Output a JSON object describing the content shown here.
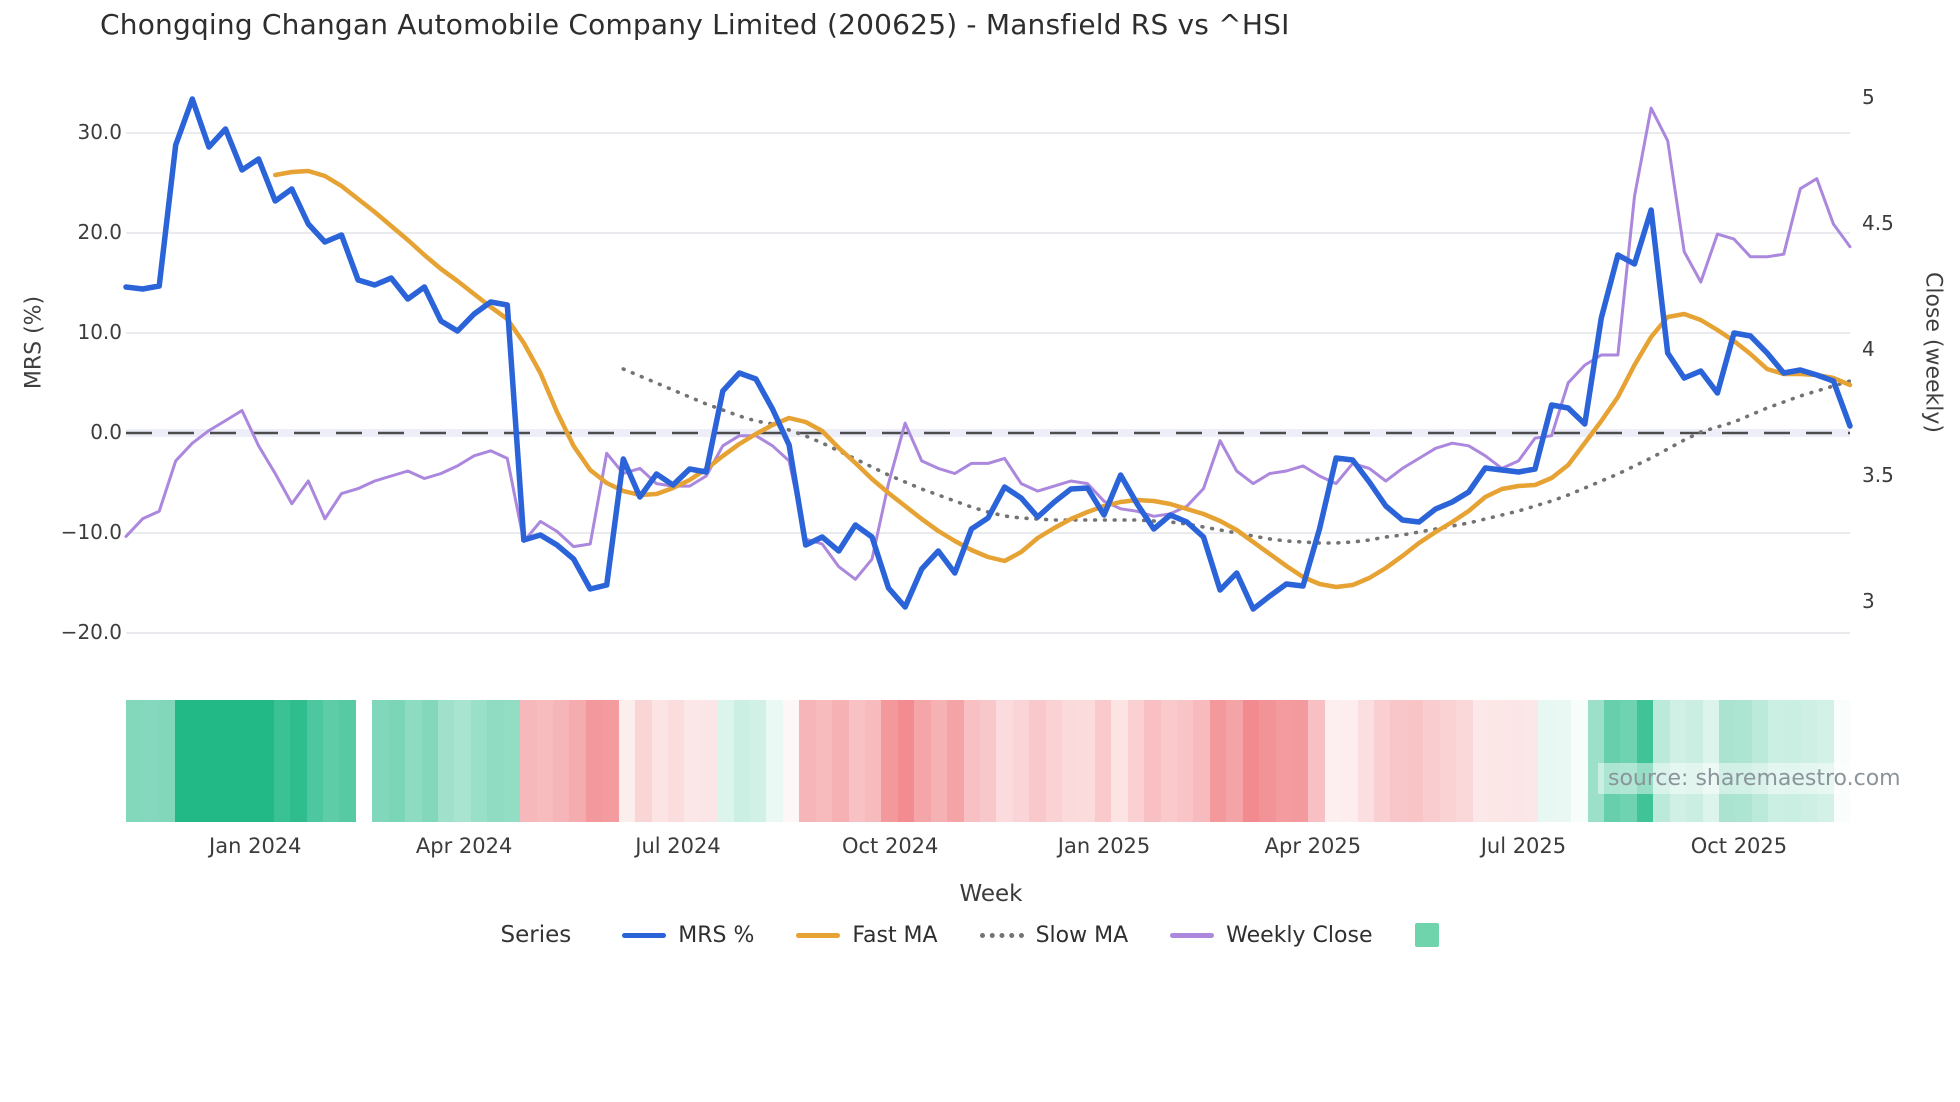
{
  "title": "Chongqing Changan Automobile Company Limited (200625) - Mansfield RS vs ^HSI",
  "source_note": "source: sharemaestro.com",
  "left_axis": {
    "label": "MRS (%)",
    "ticks": [
      {
        "value": 30,
        "label": "30.0"
      },
      {
        "value": 20,
        "label": "20.0"
      },
      {
        "value": 10,
        "label": "10.0"
      },
      {
        "value": 0,
        "label": "0.0"
      },
      {
        "value": -10,
        "label": "−10.0"
      },
      {
        "value": -20,
        "label": "−20.0"
      }
    ]
  },
  "right_axis": {
    "label": "Close (weekly)",
    "ticks": [
      {
        "value": 5,
        "label": "5"
      },
      {
        "value": 4.5,
        "label": "4.5"
      },
      {
        "value": 4,
        "label": "4"
      },
      {
        "value": 3.5,
        "label": "3.5"
      },
      {
        "value": 3,
        "label": "3"
      }
    ]
  },
  "x_axis": {
    "label": "Week",
    "ticks": [
      {
        "week": 7.8,
        "label": "Jan 2024"
      },
      {
        "week": 20.4,
        "label": "Apr 2024"
      },
      {
        "week": 33.3,
        "label": "Jul 2024"
      },
      {
        "week": 46.1,
        "label": "Oct 2024"
      },
      {
        "week": 59.0,
        "label": "Jan 2025"
      },
      {
        "week": 71.6,
        "label": "Apr 2025"
      },
      {
        "week": 84.3,
        "label": "Jul 2025"
      },
      {
        "week": 97.3,
        "label": "Oct 2025"
      }
    ]
  },
  "legend": {
    "title": "Series",
    "items": [
      {
        "label": "MRS %",
        "swatch": "line",
        "color": "#2b63d8"
      },
      {
        "label": "Fast MA",
        "swatch": "line",
        "color": "#e6a233"
      },
      {
        "label": "Slow MA",
        "swatch": "dotted",
        "color": "#737373"
      },
      {
        "label": "Weekly Close",
        "swatch": "line",
        "color": "#ab87dd"
      },
      {
        "label": "",
        "swatch": "square",
        "color": "#6fd4ab"
      }
    ]
  },
  "colors": {
    "mrs": "#2b63d8",
    "fast_ma": "#e6a233",
    "slow_ma": "#737373",
    "weekly_close": "#ab87dd",
    "grid": "#e9ebef",
    "zero_line": "#4d4d4d",
    "zero_band": "#edeef8",
    "heat_positive_base": "#22b987",
    "heat_negative_base": "#ee6e73",
    "legend_square": "#6fd4ab"
  },
  "chart_data": {
    "type": "line",
    "x_unit": "weekly index (approx. Nov 2023 - Nov 2025)",
    "n_points": 105,
    "left_ylabel": "MRS (%)",
    "right_ylabel": "Close (weekly)",
    "left_ylim": [
      -20,
      30
    ],
    "right_ylim": [
      3,
      5
    ],
    "grid": true,
    "legend_position": "bottom",
    "zero_reference_line": {
      "axis": "left",
      "value": 0,
      "style": "dashed"
    },
    "series": [
      {
        "name": "MRS %",
        "axis": "left",
        "values": [
          14.6,
          14.4,
          14.7,
          28.8,
          33.4,
          28.6,
          30.4,
          26.3,
          27.4,
          23.2,
          24.4,
          20.9,
          19.1,
          19.8,
          15.3,
          14.8,
          15.5,
          13.4,
          14.6,
          11.2,
          10.2,
          11.9,
          13.1,
          12.8,
          -10.7,
          -10.2,
          -11.2,
          -12.6,
          -15.6,
          -15.2,
          -2.6,
          -6.4,
          -4.1,
          -5.2,
          -3.6,
          -3.9,
          4.2,
          6.0,
          5.4,
          2.4,
          -1.2,
          -11.2,
          -10.4,
          -11.8,
          -9.2,
          -10.4,
          -15.5,
          -17.4,
          -13.6,
          -11.8,
          -14.0,
          -9.6,
          -8.5,
          -5.4,
          -6.5,
          -8.4,
          -6.9,
          -5.6,
          -5.5,
          -8.2,
          -4.2,
          -7.1,
          -9.6,
          -8.2,
          -8.9,
          -10.4,
          -15.7,
          -14.0,
          -17.6,
          -16.3,
          -15.1,
          -15.3,
          -9.6,
          -2.5,
          -2.7,
          -4.9,
          -7.3,
          -8.7,
          -8.9,
          -7.6,
          -6.9,
          -5.9,
          -3.5,
          -3.7,
          -3.9,
          -3.6,
          2.8,
          2.5,
          0.9,
          11.5,
          17.8,
          16.9,
          22.3,
          8.0,
          5.5,
          6.2,
          4.0,
          10.0,
          9.7,
          8.0,
          6.0,
          6.3,
          5.8,
          5.2,
          0.7
        ]
      },
      {
        "name": "Fast MA",
        "axis": "left",
        "values": [
          null,
          null,
          null,
          null,
          null,
          null,
          null,
          null,
          null,
          25.8,
          26.1,
          26.2,
          25.7,
          24.7,
          23.4,
          22.1,
          20.7,
          19.3,
          17.8,
          16.4,
          15.2,
          13.9,
          12.6,
          11.4,
          9.0,
          6.0,
          2.1,
          -1.3,
          -3.7,
          -5.0,
          -5.8,
          -6.2,
          -6.1,
          -5.5,
          -4.7,
          -3.6,
          -2.3,
          -1.1,
          -0.1,
          0.8,
          1.5,
          1.1,
          0.2,
          -1.5,
          -3.0,
          -4.6,
          -6.0,
          -7.3,
          -8.6,
          -9.8,
          -10.8,
          -11.7,
          -12.4,
          -12.8,
          -11.9,
          -10.5,
          -9.5,
          -8.6,
          -7.9,
          -7.3,
          -6.9,
          -6.7,
          -6.8,
          -7.1,
          -7.6,
          -8.1,
          -8.8,
          -9.7,
          -10.9,
          -12.1,
          -13.3,
          -14.4,
          -15.1,
          -15.4,
          -15.2,
          -14.5,
          -13.5,
          -12.3,
          -11.0,
          -9.9,
          -8.9,
          -7.8,
          -6.4,
          -5.6,
          -5.3,
          -5.2,
          -4.5,
          -3.2,
          -1.0,
          1.2,
          3.6,
          6.8,
          9.6,
          11.6,
          11.9,
          11.3,
          10.3,
          9.2,
          7.9,
          6.4,
          5.9,
          5.9,
          5.8,
          5.5,
          4.8
        ]
      },
      {
        "name": "Slow MA",
        "axis": "left",
        "values": [
          null,
          null,
          null,
          null,
          null,
          null,
          null,
          null,
          null,
          null,
          null,
          null,
          null,
          null,
          null,
          null,
          null,
          null,
          null,
          null,
          null,
          null,
          null,
          null,
          null,
          null,
          null,
          null,
          null,
          null,
          6.4,
          5.7,
          5.0,
          4.3,
          3.6,
          2.9,
          2.3,
          1.7,
          1.2,
          0.9,
          0.3,
          -0.3,
          -1.0,
          -1.8,
          -2.6,
          -3.4,
          -4.2,
          -4.9,
          -5.6,
          -6.2,
          -6.8,
          -7.4,
          -7.9,
          -8.3,
          -8.5,
          -8.6,
          -8.7,
          -8.7,
          -8.7,
          -8.7,
          -8.7,
          -8.7,
          -8.8,
          -8.9,
          -9.1,
          -9.4,
          -9.7,
          -10.0,
          -10.3,
          -10.6,
          -10.8,
          -10.9,
          -11.0,
          -11.0,
          -10.9,
          -10.7,
          -10.4,
          -10.2,
          -9.9,
          -9.6,
          -9.3,
          -9.0,
          -8.6,
          -8.2,
          -7.8,
          -7.3,
          -6.8,
          -6.2,
          -5.5,
          -4.8,
          -4.1,
          -3.3,
          -2.5,
          -1.6,
          -0.7,
          0.1,
          0.6,
          1.1,
          1.8,
          2.5,
          3.1,
          3.7,
          4.2,
          4.7,
          5.2
        ]
      },
      {
        "name": "Weekly Close",
        "axis": "right",
        "values": [
          3.26,
          3.33,
          3.36,
          3.56,
          3.63,
          3.68,
          3.72,
          3.76,
          3.62,
          3.51,
          3.39,
          3.48,
          3.33,
          3.43,
          3.45,
          3.48,
          3.5,
          3.52,
          3.49,
          3.51,
          3.54,
          3.58,
          3.6,
          3.57,
          3.24,
          3.32,
          3.28,
          3.22,
          3.23,
          3.59,
          3.51,
          3.53,
          3.47,
          3.46,
          3.46,
          3.5,
          3.62,
          3.66,
          3.66,
          3.62,
          3.56,
          3.25,
          3.23,
          3.14,
          3.09,
          3.17,
          3.47,
          3.71,
          3.56,
          3.53,
          3.51,
          3.55,
          3.55,
          3.57,
          3.47,
          3.44,
          3.46,
          3.48,
          3.47,
          3.4,
          3.37,
          3.36,
          3.34,
          3.35,
          3.38,
          3.45,
          3.64,
          3.52,
          3.47,
          3.51,
          3.52,
          3.54,
          3.5,
          3.47,
          3.55,
          3.53,
          3.48,
          3.53,
          3.57,
          3.61,
          3.63,
          3.62,
          3.58,
          3.53,
          3.56,
          3.65,
          3.66,
          3.87,
          3.94,
          3.98,
          3.98,
          4.61,
          4.96,
          4.83,
          4.39,
          4.27,
          4.46,
          4.44,
          4.37,
          4.37,
          4.38,
          4.64,
          4.68,
          4.5,
          4.41
        ]
      }
    ],
    "heat_strip": {
      "description": "weekly color band below chart: green = positive MRS, red = negative MRS, intensity proportional to |MRS|",
      "derived_from": "MRS %",
      "null_weeks": [
        14
      ]
    }
  }
}
